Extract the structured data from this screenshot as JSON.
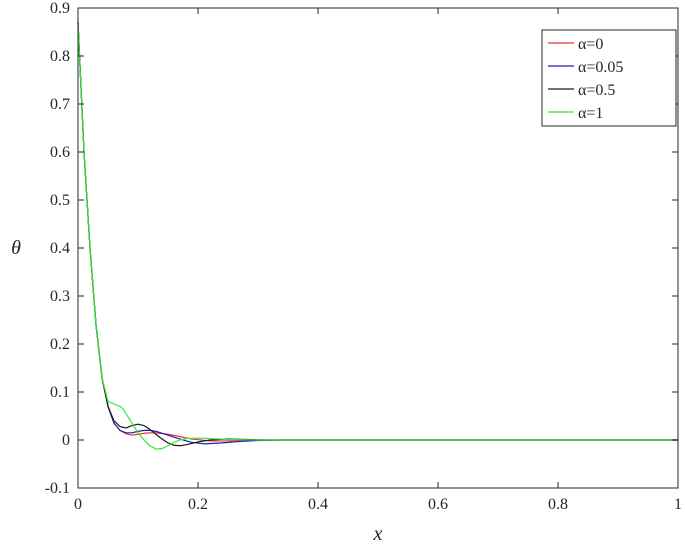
{
  "chart_data": {
    "type": "line",
    "title": "",
    "xlabel": "x",
    "ylabel": "θ",
    "xlim": [
      0,
      1
    ],
    "ylim": [
      -0.1,
      0.9
    ],
    "xticks": [
      "0",
      "0.2",
      "0.4",
      "0.6",
      "0.8",
      "1"
    ],
    "yticks": [
      "-0.1",
      "0",
      "0.1",
      "0.2",
      "0.3",
      "0.4",
      "0.5",
      "0.6",
      "0.7",
      "0.8",
      "0.9"
    ],
    "grid": false,
    "legend_position": "top-right",
    "series": [
      {
        "name": "α=0",
        "color": "#e8333a",
        "x": [
          0,
          0.01,
          0.02,
          0.03,
          0.04,
          0.05,
          0.06,
          0.07,
          0.08,
          0.09,
          0.1,
          0.11,
          0.12,
          0.13,
          0.15,
          0.17,
          0.19,
          0.22,
          0.25,
          0.28,
          0.31,
          0.35,
          0.4,
          0.5,
          0.7,
          1.0
        ],
        "y": [
          0.87,
          0.6,
          0.4,
          0.24,
          0.13,
          0.07,
          0.035,
          0.02,
          0.013,
          0.01,
          0.012,
          0.014,
          0.015,
          0.015,
          0.012,
          0.007,
          0.002,
          -0.002,
          -0.002,
          -0.001,
          0.0,
          0.0,
          0.0,
          0.0,
          0.0,
          0.0
        ]
      },
      {
        "name": "α=0.05",
        "color": "#1f1fb5",
        "x": [
          0,
          0.01,
          0.02,
          0.03,
          0.04,
          0.05,
          0.06,
          0.07,
          0.08,
          0.09,
          0.1,
          0.11,
          0.12,
          0.13,
          0.15,
          0.17,
          0.19,
          0.21,
          0.24,
          0.27,
          0.3,
          0.34,
          0.4,
          0.5,
          0.7,
          1.0
        ],
        "y": [
          0.87,
          0.6,
          0.4,
          0.24,
          0.13,
          0.07,
          0.035,
          0.02,
          0.015,
          0.015,
          0.018,
          0.02,
          0.02,
          0.018,
          0.01,
          0.002,
          -0.005,
          -0.008,
          -0.006,
          -0.003,
          -0.001,
          0.0,
          0.0,
          0.0,
          0.0,
          0.0
        ]
      },
      {
        "name": "α=0.5",
        "color": "#1a1a1a",
        "x": [
          0,
          0.01,
          0.02,
          0.03,
          0.04,
          0.05,
          0.06,
          0.07,
          0.08,
          0.09,
          0.1,
          0.11,
          0.12,
          0.13,
          0.14,
          0.15,
          0.16,
          0.17,
          0.18,
          0.2,
          0.22,
          0.25,
          0.28,
          0.32,
          0.4,
          0.5,
          0.7,
          1.0
        ],
        "y": [
          0.87,
          0.6,
          0.4,
          0.24,
          0.13,
          0.07,
          0.04,
          0.028,
          0.025,
          0.03,
          0.033,
          0.03,
          0.022,
          0.012,
          0.002,
          -0.006,
          -0.011,
          -0.012,
          -0.01,
          -0.004,
          0.0,
          0.002,
          0.001,
          0.0,
          0.0,
          0.0,
          0.0,
          0.0
        ]
      },
      {
        "name": "α=1",
        "color": "#33e833",
        "x": [
          0,
          0.01,
          0.02,
          0.03,
          0.04,
          0.05,
          0.06,
          0.07,
          0.075,
          0.08,
          0.09,
          0.1,
          0.11,
          0.12,
          0.13,
          0.14,
          0.15,
          0.16,
          0.17,
          0.18,
          0.2,
          0.22,
          0.25,
          0.3,
          0.4,
          0.5,
          0.7,
          1.0
        ],
        "y": [
          0.87,
          0.6,
          0.4,
          0.24,
          0.13,
          0.08,
          0.075,
          0.07,
          0.065,
          0.055,
          0.035,
          0.015,
          0.0,
          -0.012,
          -0.019,
          -0.018,
          -0.012,
          -0.005,
          0.0,
          0.003,
          0.004,
          0.003,
          0.001,
          0.0,
          0.0,
          0.0,
          0.0,
          0.0
        ]
      }
    ]
  }
}
